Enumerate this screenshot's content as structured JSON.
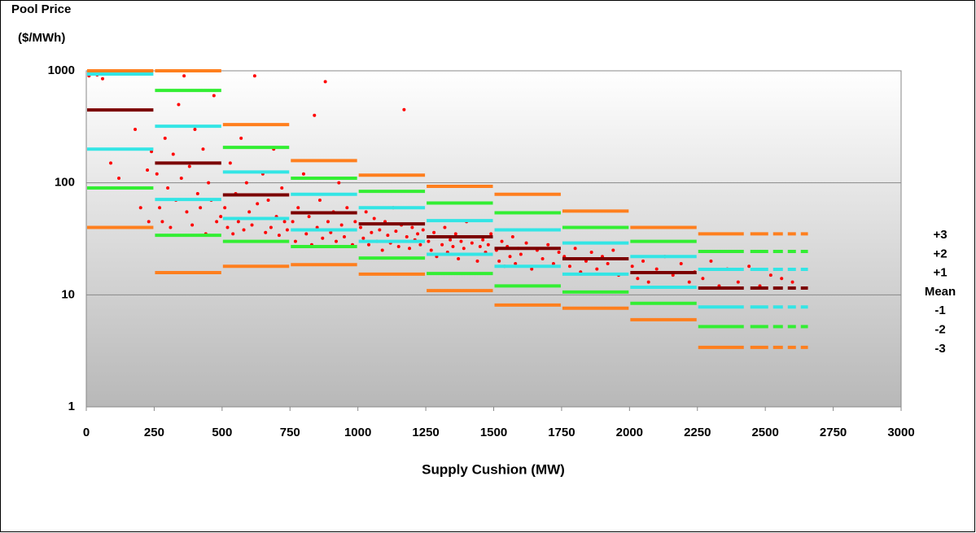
{
  "chart_data": {
    "type": "scatter",
    "y_label": [
      "Pool Price",
      "($/MWh)"
    ],
    "x_label": "Supply Cushion (MW)",
    "xlim": [
      0,
      3000
    ],
    "xticks": [
      0,
      250,
      500,
      750,
      1000,
      1250,
      1500,
      1750,
      2000,
      2250,
      2500,
      2750,
      3000
    ],
    "ylim": [
      1,
      1000
    ],
    "yticks": [
      1,
      10,
      100,
      1000
    ],
    "log_y": true,
    "grid": true,
    "legend": "right",
    "points": {
      "color": "#ff0000",
      "x": [
        10,
        60,
        90,
        120,
        200,
        230,
        240,
        180,
        225,
        40,
        260,
        270,
        280,
        290,
        300,
        310,
        320,
        330,
        340,
        350,
        360,
        370,
        380,
        390,
        400,
        410,
        420,
        430,
        440,
        450,
        460,
        470,
        480,
        490,
        495,
        510,
        520,
        530,
        540,
        550,
        560,
        570,
        580,
        590,
        600,
        610,
        620,
        630,
        640,
        650,
        660,
        670,
        680,
        690,
        700,
        710,
        720,
        730,
        740,
        760,
        770,
        780,
        790,
        800,
        810,
        820,
        830,
        840,
        850,
        860,
        870,
        880,
        890,
        900,
        910,
        920,
        930,
        940,
        950,
        960,
        970,
        980,
        990,
        1010,
        1020,
        1030,
        1040,
        1050,
        1060,
        1070,
        1080,
        1090,
        1100,
        1110,
        1120,
        1130,
        1140,
        1150,
        1160,
        1170,
        1180,
        1190,
        1200,
        1210,
        1220,
        1230,
        1240,
        1260,
        1270,
        1280,
        1290,
        1300,
        1310,
        1320,
        1330,
        1340,
        1350,
        1360,
        1370,
        1380,
        1390,
        1400,
        1410,
        1420,
        1430,
        1440,
        1450,
        1460,
        1470,
        1480,
        1490,
        1510,
        1520,
        1530,
        1540,
        1550,
        1560,
        1570,
        1580,
        1590,
        1600,
        1620,
        1640,
        1660,
        1680,
        1700,
        1720,
        1740,
        1760,
        1780,
        1800,
        1820,
        1840,
        1860,
        1880,
        1900,
        1920,
        1940,
        1960,
        1980,
        2010,
        2030,
        2050,
        2070,
        2100,
        2130,
        2160,
        2190,
        2220,
        2240,
        2270,
        2300,
        2330,
        2360,
        2400,
        2440,
        2480,
        2520,
        2560,
        2600
      ],
      "y": [
        900,
        850,
        150,
        110,
        60,
        45,
        190,
        300,
        130,
        920,
        120,
        60,
        45,
        250,
        90,
        40,
        180,
        70,
        500,
        110,
        900,
        55,
        140,
        42,
        300,
        80,
        60,
        200,
        35,
        100,
        70,
        600,
        45,
        150,
        50,
        60,
        40,
        150,
        35,
        80,
        45,
        250,
        38,
        100,
        55,
        42,
        900,
        65,
        48,
        120,
        36,
        70,
        40,
        200,
        50,
        34,
        90,
        45,
        38,
        45,
        30,
        60,
        38,
        120,
        35,
        50,
        28,
        400,
        40,
        70,
        32,
        800,
        45,
        36,
        55,
        30,
        100,
        42,
        33,
        60,
        38,
        28,
        45,
        40,
        32,
        55,
        28,
        36,
        48,
        30,
        38,
        25,
        45,
        34,
        29,
        60,
        37,
        27,
        42,
        450,
        33,
        26,
        40,
        31,
        35,
        28,
        38,
        30,
        25,
        36,
        22,
        33,
        28,
        40,
        24,
        31,
        27,
        35,
        21,
        30,
        26,
        45,
        23,
        29,
        33,
        20,
        27,
        31,
        24,
        28,
        35,
        25,
        20,
        30,
        18,
        27,
        22,
        33,
        19,
        26,
        23,
        29,
        17,
        25,
        21,
        28,
        19,
        24,
        22,
        18,
        26,
        16,
        20,
        24,
        17,
        22,
        19,
        25,
        15,
        21,
        18,
        14,
        20,
        13,
        17,
        22,
        15,
        19,
        13,
        16,
        14,
        20,
        12,
        17,
        13,
        18,
        12,
        15,
        14,
        13
      ]
    },
    "bins": [
      0,
      250,
      500,
      750,
      1000,
      1250,
      1500,
      1750,
      2000,
      2250,
      2660
    ],
    "series": [
      {
        "name": "+3",
        "color": "#ff7f1e",
        "values": [
          1000,
          1000,
          331,
          158,
          117,
          93,
          79,
          56,
          40,
          35
        ]
      },
      {
        "name": "+2",
        "color": "#33ee33",
        "values": [
          null,
          668,
          207,
          110,
          84,
          66,
          54,
          40,
          30,
          24.4
        ]
      },
      {
        "name": "+1",
        "color": "#33e5e5",
        "values": [
          935,
          320,
          125,
          79,
          60,
          46,
          38,
          29,
          22,
          16.9
        ]
      },
      {
        "name": "Mean",
        "color": "#7b0000",
        "values": [
          447,
          150,
          78,
          54,
          43,
          33,
          26,
          21,
          15.8,
          11.5
        ]
      },
      {
        "name": "-1",
        "color": "#33e5e5",
        "values": [
          200,
          71,
          48,
          38,
          30,
          23,
          18,
          15.3,
          11.7,
          7.8
        ]
      },
      {
        "name": "-2",
        "color": "#33ee33",
        "values": [
          90,
          34,
          30,
          27,
          21.3,
          15.5,
          12,
          10.6,
          8.4,
          5.2
        ]
      },
      {
        "name": "-3",
        "color": "#ff7f1e",
        "values": [
          40,
          15.8,
          18,
          18.6,
          15.3,
          10.9,
          8.1,
          7.6,
          6.0,
          3.4
        ]
      }
    ]
  }
}
